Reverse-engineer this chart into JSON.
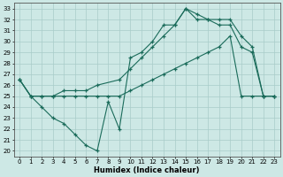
{
  "xlabel": "Humidex (Indice chaleur)",
  "xlim": [
    -0.5,
    23.5
  ],
  "ylim": [
    19.5,
    33.5
  ],
  "yticks": [
    20,
    21,
    22,
    23,
    24,
    25,
    26,
    27,
    28,
    29,
    30,
    31,
    32,
    33
  ],
  "xticks": [
    0,
    1,
    2,
    3,
    4,
    5,
    6,
    7,
    8,
    9,
    10,
    11,
    12,
    13,
    14,
    15,
    16,
    17,
    18,
    19,
    20,
    21,
    22,
    23
  ],
  "bg_color": "#cde8e5",
  "grid_color": "#a8ccc9",
  "line_color": "#1a6b5a",
  "series": [
    {
      "x": [
        0,
        1,
        2,
        3,
        4,
        5,
        6,
        7,
        8,
        9,
        10,
        11,
        12,
        13,
        14,
        15,
        16,
        17,
        18,
        19,
        20,
        21,
        22,
        23
      ],
      "y": [
        26.5,
        25.0,
        24.0,
        23.0,
        22.5,
        21.5,
        20.5,
        20.0,
        24.5,
        22.0,
        28.5,
        29.0,
        30.0,
        31.5,
        31.5,
        33.0,
        32.0,
        32.0,
        31.5,
        31.5,
        29.5,
        29.0,
        25.0,
        25.0
      ]
    },
    {
      "x": [
        0,
        1,
        2,
        3,
        4,
        5,
        6,
        7,
        9,
        10,
        11,
        12,
        13,
        14,
        15,
        16,
        17,
        18,
        19,
        20,
        21,
        22,
        23
      ],
      "y": [
        26.5,
        25.0,
        25.0,
        25.0,
        25.5,
        25.5,
        25.5,
        26.0,
        26.5,
        27.5,
        28.5,
        29.5,
        30.5,
        31.5,
        33.0,
        32.5,
        32.0,
        32.0,
        32.0,
        30.5,
        29.5,
        25.0,
        25.0
      ]
    },
    {
      "x": [
        0,
        1,
        2,
        3,
        4,
        5,
        6,
        7,
        8,
        9,
        10,
        11,
        12,
        13,
        14,
        15,
        16,
        17,
        18,
        19,
        20,
        21,
        22,
        23
      ],
      "y": [
        26.5,
        25.0,
        25.0,
        25.0,
        25.0,
        25.0,
        25.0,
        25.0,
        25.0,
        25.0,
        25.5,
        26.0,
        26.5,
        27.0,
        27.5,
        28.0,
        28.5,
        29.0,
        29.5,
        30.5,
        25.0,
        25.0,
        25.0,
        25.0
      ]
    }
  ]
}
